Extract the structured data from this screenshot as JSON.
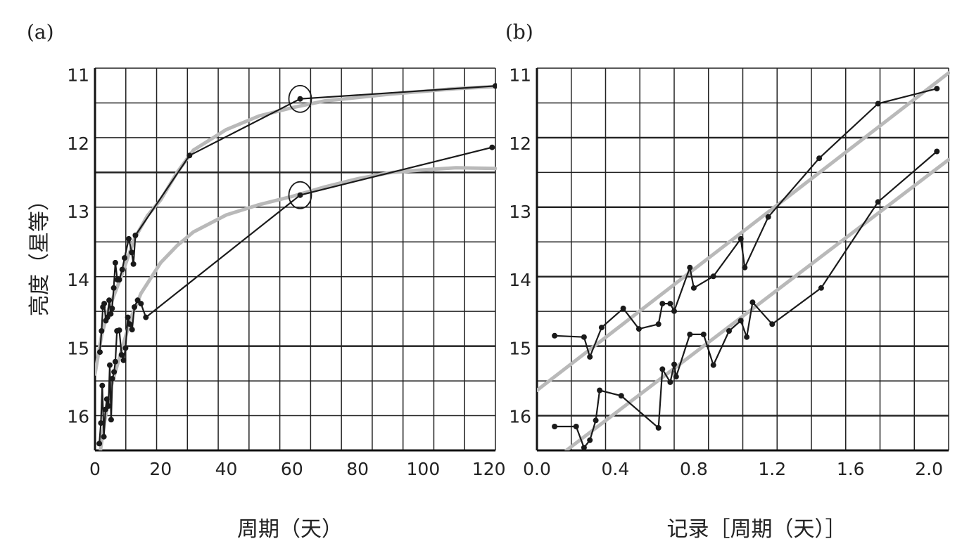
{
  "chart_data": [
    {
      "panel_label": "(a)",
      "type": "line",
      "xlabel": "周期（天）",
      "ylabel": "亮度（星等）",
      "xlim": [
        0,
        122
      ],
      "ylim": [
        16.5,
        10.9
      ],
      "y_inverted": true,
      "grid": true,
      "x_ticks": [
        "0",
        "20",
        "40",
        "60",
        "80",
        "100",
        "120"
      ],
      "x_tick_values": [
        0,
        20,
        40,
        60,
        80,
        100,
        120
      ],
      "y_ticks": [
        "11",
        "12",
        "13",
        "14",
        "15",
        "16"
      ],
      "y_tick_values": [
        11,
        12,
        13,
        14,
        15,
        16
      ],
      "series": [
        {
          "style": "black",
          "points": [
            [
              1.3,
              16.4
            ],
            [
              1.8,
              16.1
            ],
            [
              2.2,
              15.55
            ],
            [
              2.7,
              16.3
            ],
            [
              3.2,
              15.9
            ],
            [
              3.6,
              15.75
            ],
            [
              4.1,
              15.85
            ],
            [
              4.5,
              15.25
            ],
            [
              4.9,
              16.05
            ],
            [
              5.3,
              15.45
            ],
            [
              5.8,
              15.35
            ],
            [
              6.2,
              15.2
            ],
            [
              6.7,
              14.75
            ],
            [
              7.4,
              14.74
            ],
            [
              8.1,
              15.1
            ],
            [
              8.7,
              15.18
            ],
            [
              9.3,
              15.0
            ],
            [
              10.0,
              14.55
            ],
            [
              10.6,
              14.65
            ],
            [
              11.3,
              14.73
            ],
            [
              12.0,
              14.4
            ],
            [
              13.0,
              14.3
            ],
            [
              14.0,
              14.35
            ],
            [
              15.5,
              14.55
            ],
            [
              62.5,
              12.76
            ],
            [
              121.0,
              12.06
            ]
          ]
        },
        {
          "style": "black",
          "points": [
            [
              1.5,
              15.06
            ],
            [
              2.0,
              14.75
            ],
            [
              2.4,
              14.4
            ],
            [
              2.8,
              14.35
            ],
            [
              3.3,
              14.6
            ],
            [
              3.8,
              14.55
            ],
            [
              4.3,
              14.3
            ],
            [
              4.8,
              14.5
            ],
            [
              5.2,
              14.42
            ],
            [
              5.7,
              14.12
            ],
            [
              6.2,
              13.75
            ],
            [
              6.8,
              14.0
            ],
            [
              7.4,
              14.0
            ],
            [
              8.3,
              13.85
            ],
            [
              9.0,
              13.68
            ],
            [
              10.3,
              13.4
            ],
            [
              11.2,
              13.6
            ],
            [
              11.7,
              13.77
            ],
            [
              12.3,
              13.35
            ],
            [
              28.8,
              12.18
            ],
            [
              62.5,
              11.35
            ],
            [
              122.0,
              11.16
            ]
          ]
        },
        {
          "style": "gray",
          "points": [
            [
              0.0,
              15.38
            ],
            [
              2.0,
              14.82
            ],
            [
              4.0,
              14.45
            ],
            [
              8.0,
              13.95
            ],
            [
              12.0,
              13.4
            ],
            [
              16.0,
              13.06
            ],
            [
              20.0,
              12.83
            ],
            [
              25.0,
              12.43
            ],
            [
              30.0,
              12.1
            ],
            [
              40.0,
              11.8
            ],
            [
              50.0,
              11.6
            ],
            [
              60.0,
              11.48
            ],
            [
              70.0,
              11.38
            ],
            [
              80.0,
              11.33
            ],
            [
              90.0,
              11.28
            ],
            [
              100.0,
              11.24
            ],
            [
              110.0,
              11.2
            ],
            [
              122.0,
              11.17
            ]
          ]
        },
        {
          "style": "gray",
          "points": [
            [
              1.5,
              16.55
            ],
            [
              3.0,
              16.05
            ],
            [
              5.0,
              15.55
            ],
            [
              8.0,
              15.05
            ],
            [
              11.0,
              14.55
            ],
            [
              14.0,
              14.2
            ],
            [
              20.0,
              13.75
            ],
            [
              25.0,
              13.5
            ],
            [
              30.0,
              13.3
            ],
            [
              40.0,
              13.05
            ],
            [
              50.0,
              12.9
            ],
            [
              60.0,
              12.78
            ],
            [
              70.0,
              12.64
            ],
            [
              80.0,
              12.52
            ],
            [
              90.0,
              12.43
            ],
            [
              100.0,
              12.39
            ],
            [
              110.0,
              12.36
            ],
            [
              122.0,
              12.37
            ]
          ]
        }
      ],
      "annotations": [
        {
          "shape": "circle",
          "x": 62.5,
          "y": 11.35
        },
        {
          "shape": "circle",
          "x": 62.5,
          "y": 12.76
        }
      ]
    },
    {
      "panel_label": "(b)",
      "type": "line",
      "xlabel": "记录［周期（天）］",
      "ylabel": "",
      "xlim": [
        0.0,
        2.1
      ],
      "ylim": [
        16.5,
        10.9
      ],
      "y_inverted": true,
      "grid": true,
      "x_ticks": [
        "0.0",
        "0.4",
        "0.8",
        "1.2",
        "1.6",
        "2.0"
      ],
      "x_tick_values": [
        0.0,
        0.4,
        0.8,
        1.2,
        1.6,
        2.0
      ],
      "y_ticks": [
        "11",
        "12",
        "13",
        "14",
        "15",
        "16"
      ],
      "y_tick_values": [
        11,
        12,
        13,
        14,
        15,
        16
      ],
      "series": [
        {
          "style": "black",
          "points": [
            [
              0.09,
              14.82
            ],
            [
              0.24,
              14.84
            ],
            [
              0.27,
              15.13
            ],
            [
              0.33,
              14.7
            ],
            [
              0.44,
              14.42
            ],
            [
              0.52,
              14.72
            ],
            [
              0.62,
              14.65
            ],
            [
              0.64,
              14.35
            ],
            [
              0.68,
              14.35
            ],
            [
              0.7,
              14.46
            ],
            [
              0.78,
              13.82
            ],
            [
              0.8,
              14.12
            ],
            [
              0.9,
              13.95
            ],
            [
              1.04,
              13.4
            ],
            [
              1.06,
              13.82
            ],
            [
              1.18,
              13.08
            ],
            [
              1.44,
              12.22
            ],
            [
              1.74,
              11.42
            ],
            [
              2.04,
              11.2
            ]
          ]
        },
        {
          "style": "black",
          "points": [
            [
              0.09,
              16.15
            ],
            [
              0.2,
              16.15
            ],
            [
              0.24,
              16.46
            ],
            [
              0.27,
              16.35
            ],
            [
              0.3,
              16.06
            ],
            [
              0.32,
              15.62
            ],
            [
              0.43,
              15.7
            ],
            [
              0.62,
              16.17
            ],
            [
              0.64,
              15.31
            ],
            [
              0.68,
              15.5
            ],
            [
              0.7,
              15.24
            ],
            [
              0.71,
              15.42
            ],
            [
              0.78,
              14.8
            ],
            [
              0.85,
              14.8
            ],
            [
              0.9,
              15.25
            ],
            [
              0.98,
              14.75
            ],
            [
              1.04,
              14.6
            ],
            [
              1.07,
              14.84
            ],
            [
              1.1,
              14.33
            ],
            [
              1.2,
              14.65
            ],
            [
              1.45,
              14.12
            ],
            [
              1.74,
              12.86
            ],
            [
              2.04,
              12.12
            ]
          ]
        },
        {
          "style": "gray",
          "points": [
            [
              0.0,
              15.62
            ],
            [
              2.1,
              10.97
            ]
          ]
        },
        {
          "style": "gray",
          "points": [
            [
              0.15,
              16.5
            ],
            [
              2.1,
              12.24
            ]
          ]
        }
      ]
    }
  ]
}
